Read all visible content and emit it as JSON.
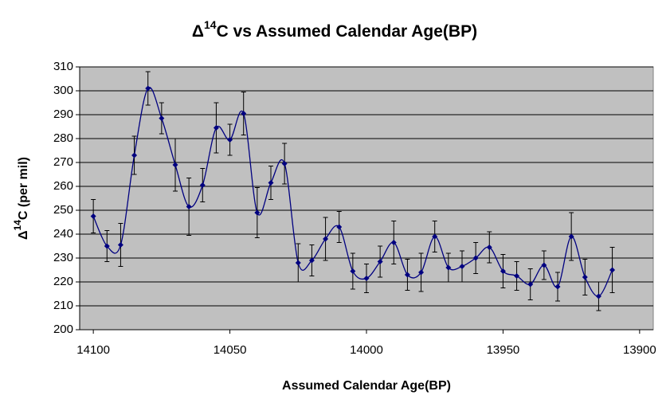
{
  "chart_data": {
    "type": "line",
    "smooth": true,
    "title": [
      "Δ",
      "14",
      "C vs Assumed Calendar Age(BP)"
    ],
    "x_label": "Assumed Calendar Age(BP)",
    "y_label": [
      "Δ",
      "14",
      "C (per mil)"
    ],
    "x": [
      14100,
      14095,
      14090,
      14085,
      14080,
      14075,
      14070,
      14065,
      14060,
      14055,
      14050,
      14045,
      14040,
      14035,
      14030,
      14025,
      14020,
      14015,
      14010,
      14005,
      14000,
      13995,
      13990,
      13985,
      13980,
      13975,
      13970,
      13965,
      13960,
      13955,
      13950,
      13945,
      13940,
      13935,
      13930,
      13925,
      13920,
      13915,
      13910
    ],
    "series": [
      {
        "color": "#000080",
        "error_color": "#000000",
        "values": [
          247.5,
          235,
          235.5,
          273,
          301,
          288.5,
          269,
          251.5,
          260.5,
          284.5,
          279.5,
          290.5,
          249,
          261.5,
          269.5,
          228,
          229,
          238,
          243,
          224.5,
          221.5,
          228.5,
          236.5,
          223,
          224,
          239,
          226,
          226.5,
          230,
          234.5,
          224.5,
          222.5,
          219,
          227,
          218,
          239,
          222,
          214,
          225
        ],
        "errors": [
          7,
          6.5,
          9,
          8,
          7,
          6.5,
          11,
          12,
          7,
          10.5,
          6.5,
          9,
          10.5,
          7,
          8.5,
          8,
          6.5,
          9,
          6.5,
          7.5,
          6,
          6.5,
          9,
          6.5,
          8,
          6.5,
          6,
          6.5,
          6.5,
          6.5,
          7,
          6,
          6.5,
          6,
          6,
          10,
          7.5,
          6,
          9.5
        ]
      }
    ],
    "xlim": [
      14105,
      13895
    ],
    "xticks": [
      14100,
      14050,
      14000,
      13950,
      13900
    ],
    "ylim": [
      200,
      310
    ],
    "yticks": [
      200,
      210,
      220,
      230,
      240,
      250,
      260,
      270,
      280,
      290,
      300,
      310
    ],
    "grid": true,
    "plot_background": "#c0c0c0"
  }
}
